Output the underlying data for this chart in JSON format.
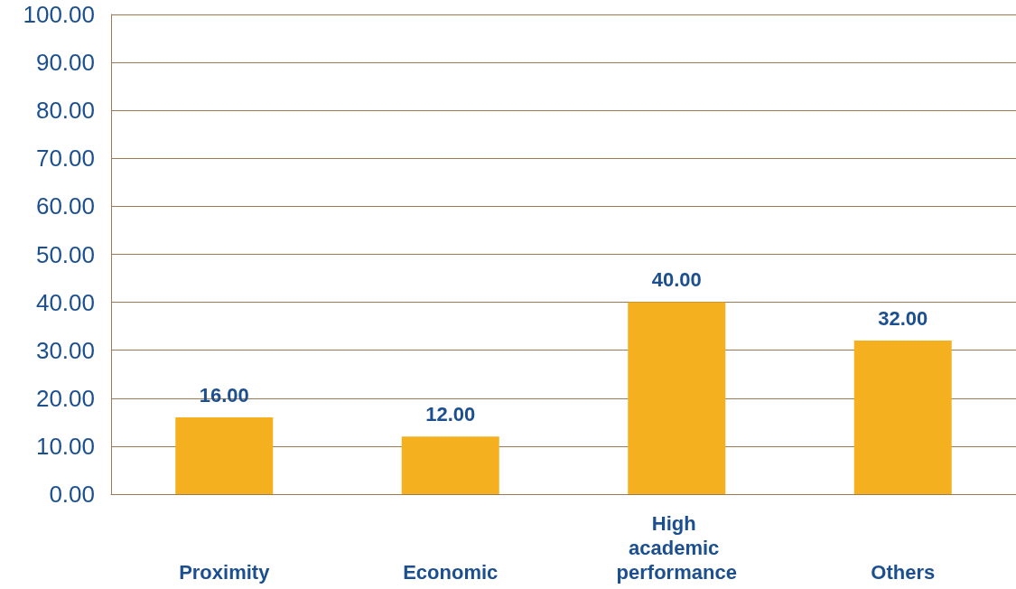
{
  "chart_data": {
    "type": "bar",
    "categories": [
      "Proximity",
      "Economic",
      "High academic performance",
      "Others"
    ],
    "values": [
      16,
      12,
      40,
      32
    ],
    "value_labels": [
      "16.00",
      "12.00",
      "40.00",
      "32.00"
    ],
    "color": "#f4b01e",
    "ylim": [
      0,
      100
    ],
    "yticks": [
      {
        "value": 0,
        "label": "0.00"
      },
      {
        "value": 10,
        "label": "10.00"
      },
      {
        "value": 20,
        "label": "20.00"
      },
      {
        "value": 30,
        "label": "30.00"
      },
      {
        "value": 40,
        "label": "40.00"
      },
      {
        "value": 50,
        "label": "50.00"
      },
      {
        "value": 60,
        "label": "60.00"
      },
      {
        "value": 70,
        "label": "70.00"
      },
      {
        "value": 80,
        "label": "80.00"
      },
      {
        "value": 90,
        "label": "90.00"
      },
      {
        "value": 100,
        "label": "100.00"
      }
    ],
    "grid": "y"
  }
}
